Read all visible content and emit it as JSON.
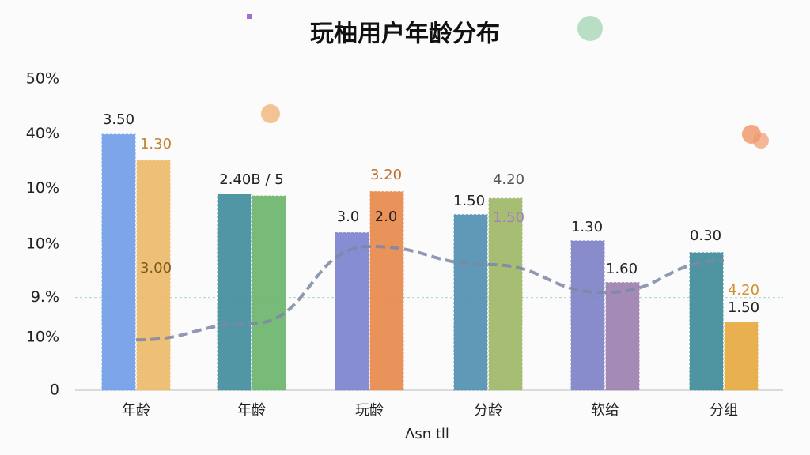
{
  "chart_data": {
    "type": "bar",
    "title": "玩柚用户年龄分布",
    "x_label": "Λsn tll",
    "categories": [
      "年龄",
      "年龄",
      "玩龄",
      "分龄",
      "软给",
      "分组"
    ],
    "series": [
      {
        "colors": [
          "#6f9de8",
          "#3f8c9c",
          "#7b82cf",
          "#4f8fb0",
          "#7d80c6",
          "#3d8a98"
        ],
        "values": [
          41.1,
          31.5,
          25.3,
          28.2,
          24.0,
          22.1
        ]
      },
      {
        "colors": [
          "#edb968",
          "#6ab56c",
          "#e8884a",
          "#9fb766",
          "#9a7fae",
          "#e8a83e"
        ],
        "values": [
          36.9,
          31.2,
          31.9,
          30.8,
          17.3,
          10.9
        ]
      }
    ],
    "trend": {
      "color": "#7e86a6",
      "values": [
        8.1,
        10.7,
        23.1,
        20.2,
        15.7,
        20.8
      ]
    },
    "annotations": [
      "3.50",
      "1.30",
      "3.00",
      "2.40B / 5",
      "3.0",
      "2.0",
      "3.20",
      "1.50",
      "4.20",
      "1.50",
      "1.30",
      "1.60",
      "0.30",
      "4.20",
      "1.50"
    ],
    "ylim": [
      0,
      50
    ],
    "yticks": [
      0,
      {
        "value": 8.5,
        "label": "10%"
      },
      {
        "value": 14.9,
        "label": "9.%"
      },
      {
        "value": 23.5,
        "label": "10%"
      },
      {
        "value": 32.4,
        "label": "10%"
      },
      {
        "value": 41.2,
        "label": "40%"
      },
      {
        "value": 50,
        "label": "50%"
      }
    ],
    "reference_tick": 2
  }
}
